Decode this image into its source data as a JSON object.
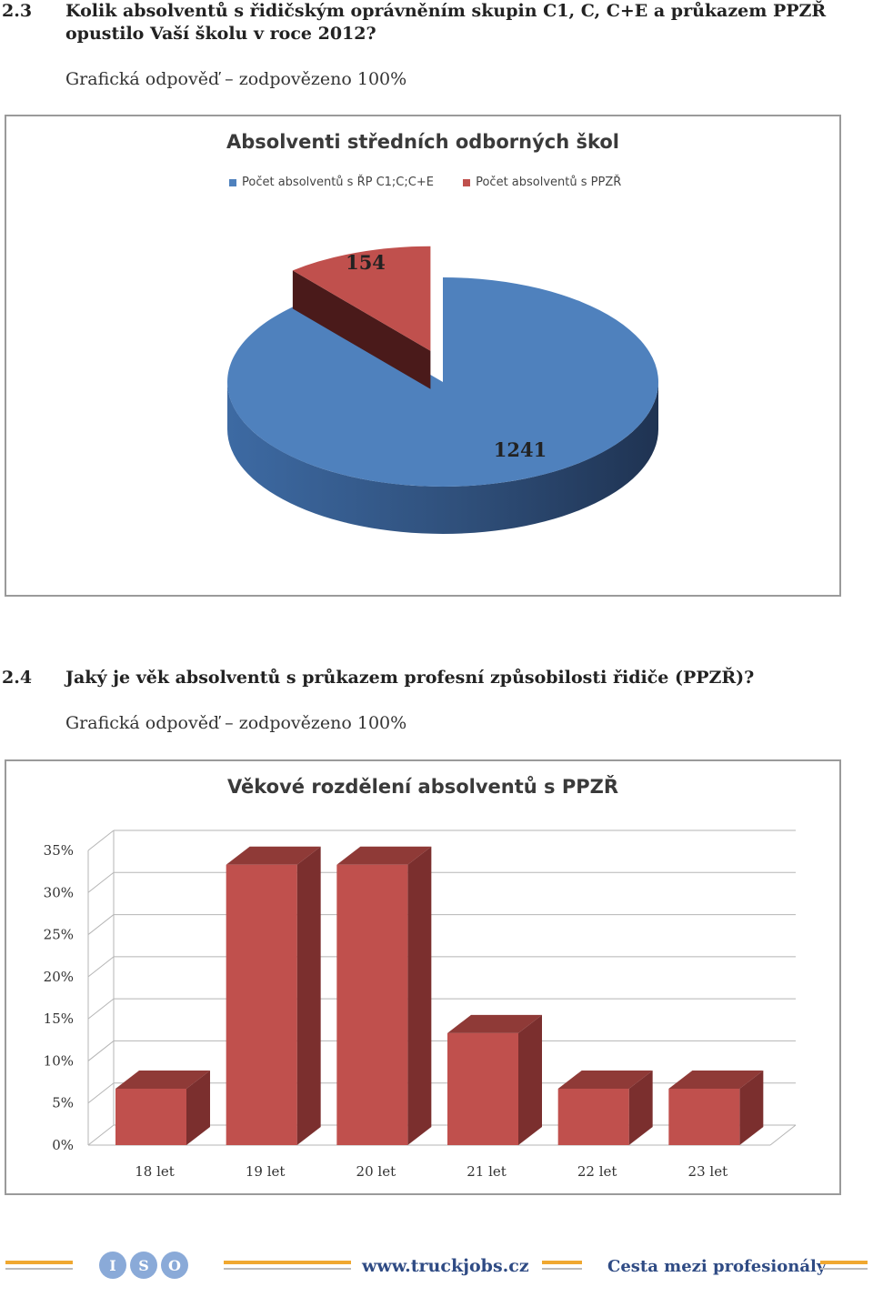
{
  "q23": {
    "number": "2.3",
    "text": "Kolik absolventů s řidičským oprávněním skupin C1, C, C+E a průkazem PPZŘ opustilo Vaší školu v roce 2012?",
    "sub": "Grafická odpověď – zodpovězeno 100%"
  },
  "q24": {
    "number": "2.4",
    "text": "Jaký je věk absolventů s průkazem profesní způsobilosti řidiče (PPZŘ)?",
    "sub": "Grafická odpověď – zodpovězeno 100%"
  },
  "footer": {
    "logo": "ISO",
    "url": "www.truckjobs.cz",
    "slogan": "Cesta mezi profesionály"
  },
  "chart_data": [
    {
      "type": "pie",
      "title": "Absolventi středních odborných škol",
      "legend_position": "top",
      "series": [
        {
          "name": "Počet absolventů s ŘP C1;C;C+E",
          "value": 1241,
          "color": "#4f81bd"
        },
        {
          "name": "Počet absolventů s PPZŘ",
          "value": 154,
          "color": "#c0504d"
        }
      ]
    },
    {
      "type": "bar",
      "title": "Věkové rozdělení absolventů s PPZŘ",
      "categories": [
        "18 let",
        "19 let",
        "20 let",
        "21 let",
        "22 let",
        "23 let"
      ],
      "values": [
        6.7,
        33.3,
        33.3,
        13.3,
        6.7,
        6.7
      ],
      "color": "#c0504d",
      "ylim": [
        0,
        35
      ],
      "yticks": [
        "0%",
        "5%",
        "10%",
        "15%",
        "20%",
        "25%",
        "30%",
        "35%"
      ],
      "grid": true,
      "legend_position": "none"
    }
  ]
}
